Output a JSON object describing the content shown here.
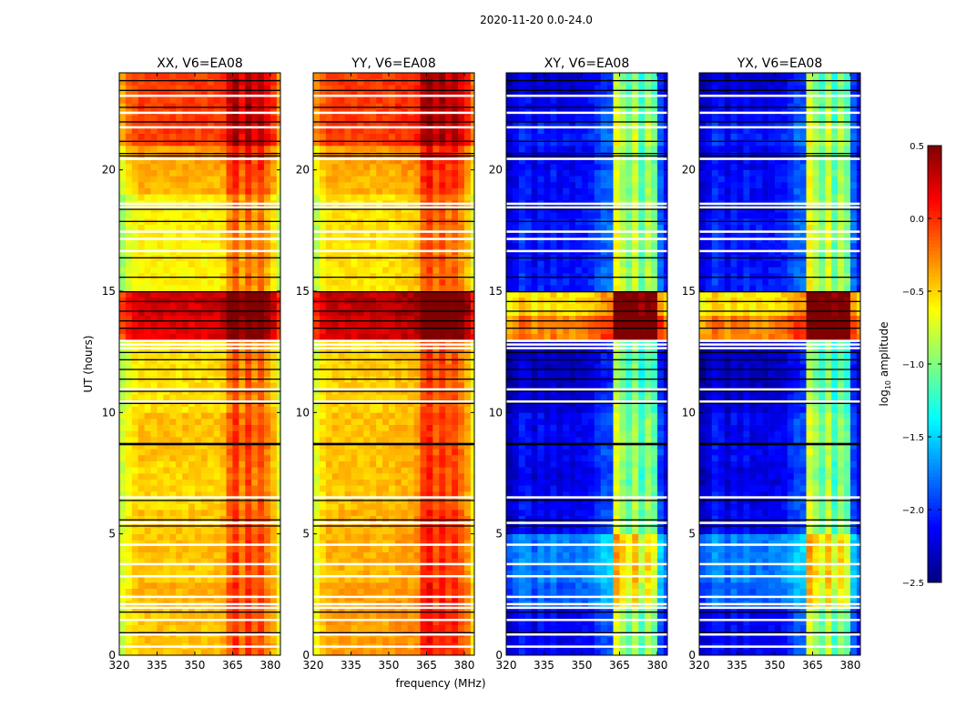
{
  "chart_data": {
    "type": "heatmap",
    "title": "2020-11-20 0.0-24.0",
    "xlabel": "frequency (MHz)",
    "ylabel": "UT (hours)",
    "xlim": [
      320,
      384
    ],
    "ylim": [
      0,
      24
    ],
    "xticks": [
      320,
      335,
      350,
      365,
      380
    ],
    "yticks": [
      0,
      5,
      10,
      15,
      20
    ],
    "colorbar": {
      "label": "log10 amplitude",
      "label_main": "log",
      "label_sub": "10",
      "label_rest": " amplitude",
      "range": [
        -2.5,
        0.5
      ],
      "ticks": [
        "0.5",
        "0.0",
        "−0.5",
        "−1.0",
        "−1.5",
        "−2.0",
        "−2.5"
      ],
      "tick_values": [
        0.5,
        0,
        -0.5,
        -1,
        -1.5,
        -2,
        -2.5
      ],
      "colormap": "jet"
    },
    "freq_bin_starts_mhz_step": 2.5,
    "time_bin_hours": 0.25,
    "flagged_hours_white": [
      0.4,
      0.9,
      1.5,
      2.0,
      2.15,
      2.45,
      3.3,
      3.8,
      4.6,
      5.5,
      6.55,
      10.5,
      11.0,
      12.7,
      12.85,
      13.0,
      16.7,
      17.2,
      17.5,
      18.5,
      18.65,
      20.5,
      21.8,
      22.4,
      23.1
    ],
    "flagged_hours_black": [
      0.95,
      1.8,
      5.35,
      5.6,
      6.4,
      8.7,
      8.75,
      10.4,
      10.45,
      10.9,
      11.4,
      11.8,
      12.2,
      12.5,
      13.5,
      13.8,
      14.2,
      14.6,
      15.0,
      15.6,
      16.4,
      17.9,
      18.4,
      20.6,
      20.7,
      21.2,
      22.0,
      22.6,
      23.3,
      23.7
    ],
    "panels": [
      {
        "title": "XX, V6=EA08",
        "show_ylabel": true,
        "base_by_hour": [
          -0.45,
          -0.45,
          -0.4,
          -0.45,
          -0.45,
          -0.45,
          -0.5,
          -0.5,
          -0.45,
          -0.45,
          -0.55,
          -0.55,
          -0.55,
          0.2,
          0.25,
          -0.6,
          -0.6,
          -0.6,
          -0.6,
          -0.4,
          -0.35,
          -0.05,
          -0.05,
          -0.05
        ],
        "freq_profile": [
          -0.3,
          -0.15,
          -0.05,
          0,
          0,
          0,
          0,
          0,
          0,
          0,
          0,
          0,
          0,
          0,
          0,
          0,
          0.05,
          0.3,
          0.45,
          0.2,
          0.45,
          0.25,
          0.4,
          0.2,
          0.05,
          -0.25
        ]
      },
      {
        "title": "YY, V6=EA08",
        "show_ylabel": false,
        "base_by_hour": [
          -0.35,
          -0.35,
          -0.35,
          -0.4,
          -0.4,
          -0.4,
          -0.45,
          -0.45,
          -0.45,
          -0.45,
          -0.5,
          -0.5,
          -0.5,
          0.25,
          0.3,
          -0.55,
          -0.55,
          -0.55,
          -0.55,
          -0.4,
          -0.35,
          -0.05,
          -0.05,
          -0.05
        ],
        "freq_profile": [
          -0.25,
          -0.1,
          0,
          0,
          0,
          0,
          0,
          0,
          0,
          0,
          0,
          0,
          0,
          0.05,
          0.05,
          0.05,
          0.1,
          0.4,
          0.5,
          0.3,
          0.45,
          0.3,
          0.4,
          0.25,
          0.1,
          -0.2
        ]
      },
      {
        "title": "XY, V6=EA08",
        "show_ylabel": false,
        "base_by_hour": [
          -2.2,
          -2.2,
          -1.9,
          -1.8,
          -1.8,
          -2.2,
          -2.2,
          -2.25,
          -2.2,
          -2.2,
          -2.3,
          -2.35,
          -2.35,
          -0.3,
          -0.6,
          -2.1,
          -2.15,
          -2.1,
          -2.15,
          -2.15,
          -2.2,
          -2.1,
          -2.2,
          -2.3
        ],
        "freq_profile": [
          -0.1,
          0,
          0.15,
          0.1,
          -0.05,
          0.1,
          0,
          0.1,
          0,
          0.05,
          0,
          0.05,
          0.05,
          0.1,
          0.2,
          0.3,
          0.3,
          1.5,
          1.3,
          1.1,
          1.4,
          1.0,
          1.3,
          1.1,
          0.3,
          0.05
        ]
      },
      {
        "title": "YX, V6=EA08",
        "show_ylabel": false,
        "base_by_hour": [
          -2.2,
          -2.2,
          -1.9,
          -1.8,
          -1.8,
          -2.2,
          -2.2,
          -2.25,
          -2.2,
          -2.2,
          -2.3,
          -2.35,
          -2.35,
          -0.3,
          -0.6,
          -2.1,
          -2.15,
          -2.1,
          -2.15,
          -2.15,
          -2.2,
          -2.1,
          -2.2,
          -2.3
        ],
        "freq_profile": [
          -0.1,
          0,
          0.15,
          0.1,
          -0.05,
          0.1,
          0,
          0.1,
          0,
          0.05,
          0,
          0.05,
          0.05,
          0.1,
          0.2,
          0.3,
          0.3,
          1.5,
          1.3,
          1.1,
          1.4,
          1.0,
          1.3,
          1.1,
          0.3,
          0.05
        ]
      }
    ]
  }
}
